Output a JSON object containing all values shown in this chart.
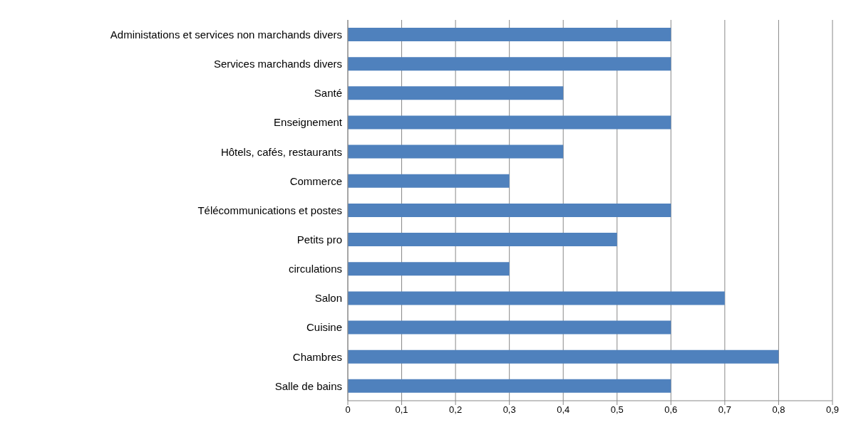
{
  "chart_data": {
    "type": "bar",
    "orientation": "horizontal",
    "categories": [
      "Administations et services non marchands divers",
      "Services marchands divers",
      "Santé",
      "Enseignement",
      "Hôtels, cafés, restaurants",
      "Commerce",
      "Télécommunications et postes",
      "Petits pro",
      "circulations",
      "Salon",
      "Cuisine",
      "Chambres",
      "Salle de bains"
    ],
    "values": [
      0.6,
      0.6,
      0.4,
      0.6,
      0.4,
      0.3,
      0.6,
      0.5,
      0.3,
      0.7,
      0.6,
      0.8,
      0.6
    ],
    "color": "#4f81bd",
    "xlim": [
      0,
      0.9
    ],
    "xticks": [
      0,
      {
        "value": 0.1,
        "label": "0,1"
      },
      {
        "value": 0.2,
        "label": "0,2"
      },
      {
        "value": 0.3,
        "label": "0,3"
      },
      {
        "value": 0.4,
        "label": "0,4"
      },
      {
        "value": 0.5,
        "label": "0,5"
      },
      {
        "value": 0.6,
        "label": "0,6"
      },
      {
        "value": 0.7,
        "label": "0,7"
      },
      {
        "value": 0.8,
        "label": "0,8"
      },
      {
        "value": 0.9,
        "label": "0,9"
      }
    ],
    "grid": "x"
  }
}
